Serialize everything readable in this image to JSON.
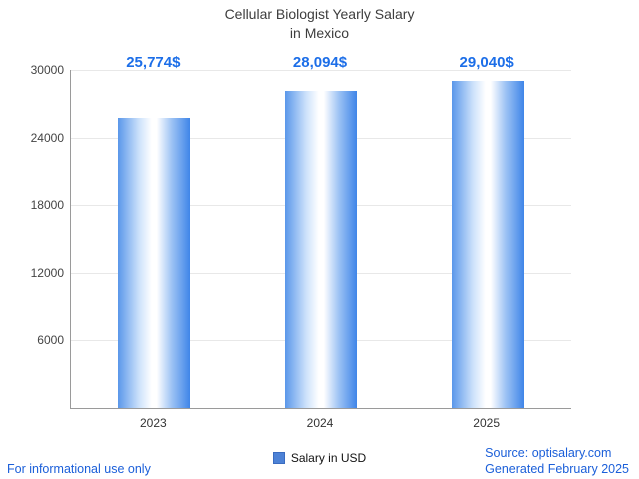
{
  "title": {
    "line1": "Cellular Biologist Yearly Salary",
    "line2": "in Mexico"
  },
  "chart_data": {
    "type": "bar",
    "title": "Cellular Biologist Yearly Salary in Mexico",
    "categories": [
      "2023",
      "2024",
      "2025"
    ],
    "values": [
      25774,
      28094,
      29040
    ],
    "value_labels": [
      "25,774$",
      "28,094$",
      "29,040$"
    ],
    "series_name": "Salary in USD",
    "xlabel": "",
    "ylabel": "",
    "ylim": [
      0,
      30000
    ],
    "yticks": [
      6000,
      12000,
      18000,
      24000,
      30000
    ],
    "grid": true,
    "legend_position": "bottom"
  },
  "legend": {
    "label": "Salary in USD"
  },
  "footer": {
    "left": "For informational use only",
    "source": "Source: optisalary.com",
    "generated": "Generated February 2025"
  },
  "colors": {
    "accent_text": "#1c6ee8",
    "bar_edge": "#4a8ee8",
    "legend_square": "#4d82d6",
    "grid": "#e8e8e8",
    "axis": "#9a9a9a",
    "title_text": "#3d3d3d"
  }
}
